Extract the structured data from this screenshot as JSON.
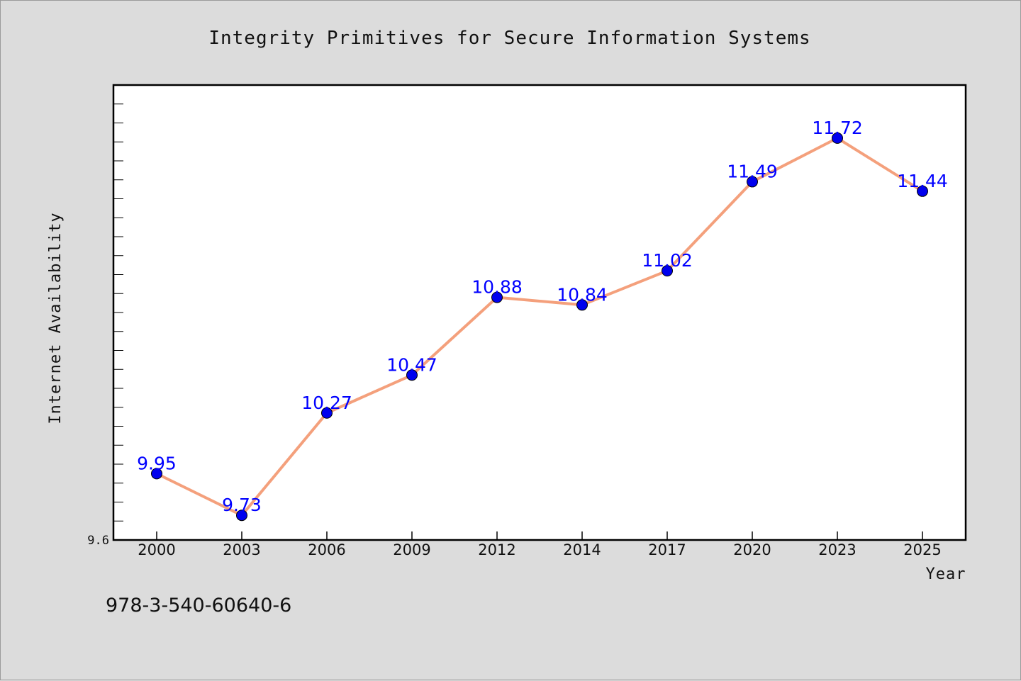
{
  "chart_data": {
    "type": "line",
    "title": "Integrity Primitives for Secure Information Systems",
    "xlabel": "Year",
    "ylabel": "Internet Availability",
    "categories": [
      "2000",
      "2003",
      "2006",
      "2009",
      "2012",
      "2014",
      "2017",
      "2020",
      "2023",
      "2025"
    ],
    "series": [
      {
        "values": [
          9.95,
          9.73,
          10.27,
          10.47,
          10.88,
          10.84,
          11.02,
          11.49,
          11.72,
          11.44
        ]
      }
    ],
    "data_labels": [
      "9.95",
      "9.73",
      "10.27",
      "10.47",
      "10.88",
      "10.84",
      "11.02",
      "11.49",
      "11.72",
      "11.44"
    ],
    "ytick_labels": [
      "9.6"
    ],
    "ylim": [
      9.6,
      12.0
    ],
    "grid": false,
    "legend": "none"
  },
  "footer": {
    "isbn": "978-3-540-60640-6"
  },
  "colors": {
    "background": "#dcdcdc",
    "plot_background": "#ffffff",
    "line": "#f4a07c",
    "marker": "#0000ee",
    "data_label": "#0000ff"
  }
}
